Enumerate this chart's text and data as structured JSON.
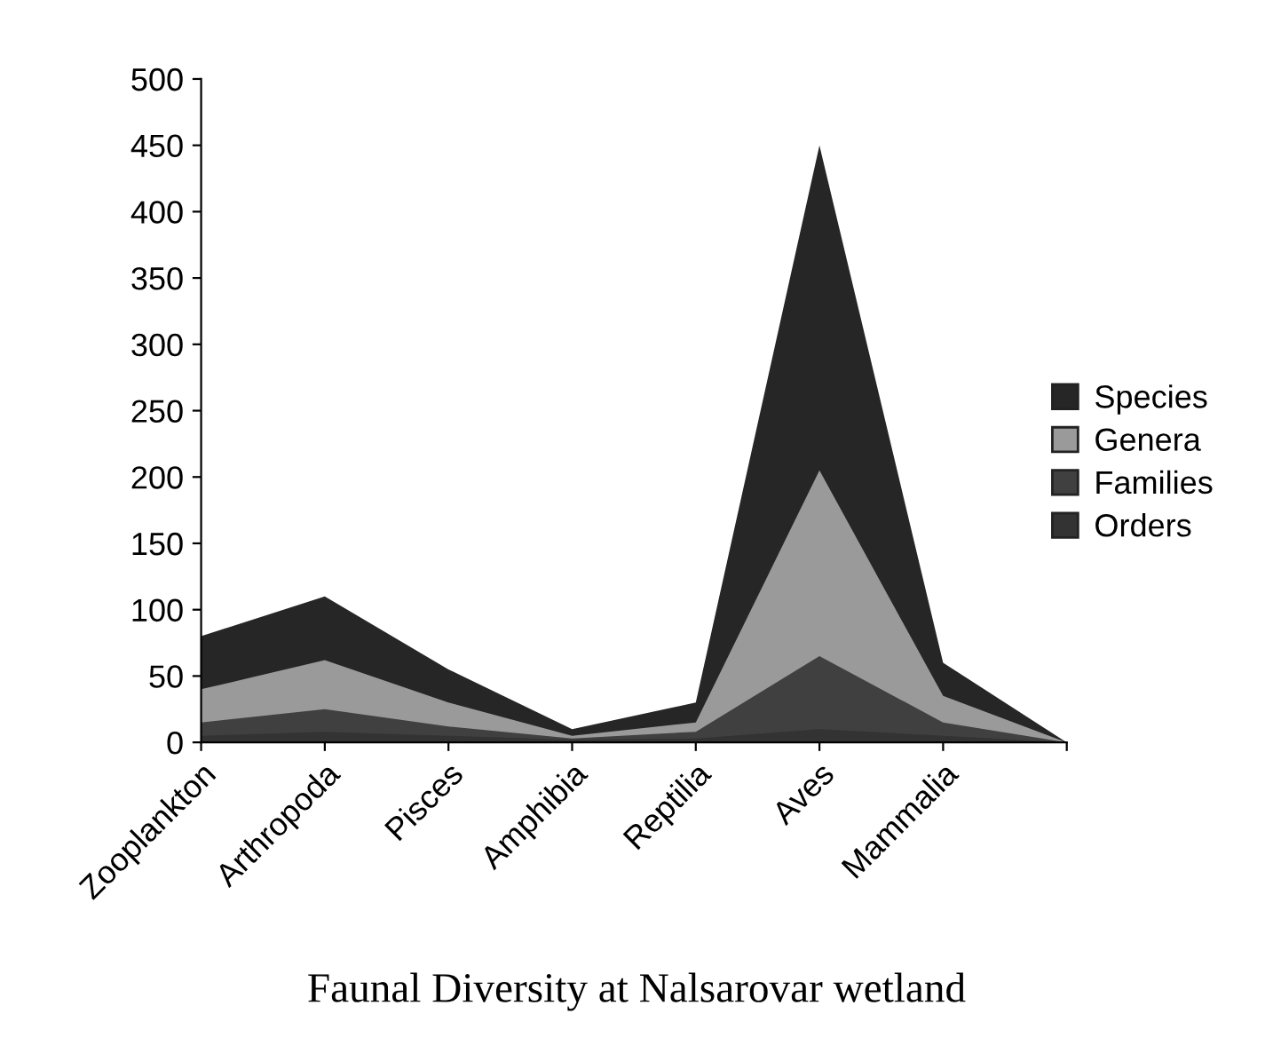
{
  "chart_data": {
    "type": "area",
    "title": "Faunal Diversity at Nalsarovar wetland",
    "categories": [
      "Zooplankton",
      "Arthropoda",
      "Pisces",
      "Amphibia",
      "Reptilia",
      "Aves",
      "Mammalia",
      null
    ],
    "series": [
      {
        "name": "Species",
        "color": "#262626",
        "values": [
          80,
          110,
          55,
          10,
          30,
          450,
          60,
          0
        ]
      },
      {
        "name": "Genera",
        "color": "#9a9a9a",
        "values": [
          40,
          62,
          30,
          5,
          15,
          205,
          35,
          0
        ]
      },
      {
        "name": "Families",
        "color": "#404040",
        "values": [
          15,
          25,
          12,
          3,
          8,
          65,
          15,
          0
        ]
      },
      {
        "name": "Orders",
        "color": "#333333",
        "values": [
          5,
          8,
          5,
          2,
          3,
          10,
          5,
          0
        ]
      }
    ],
    "ylim": [
      0,
      500
    ],
    "yticks": [
      0,
      50,
      100,
      150,
      200,
      250,
      300,
      350,
      400,
      450,
      500
    ],
    "grid": false,
    "legend": "right"
  }
}
